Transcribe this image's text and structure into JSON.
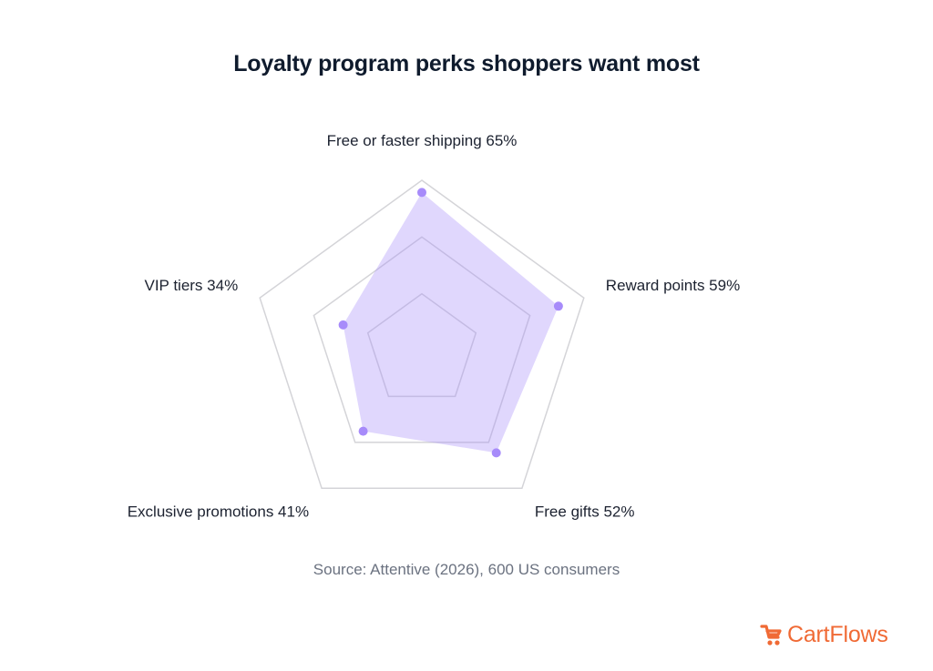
{
  "title": "Loyalty program perks shoppers want most",
  "source": "Source: Attentive (2026), 600 US consumers",
  "brand": {
    "name": "CartFlows",
    "logo_icon": "cartflows-cart-icon",
    "color": "#f06a35"
  },
  "colors": {
    "fill": "#a78bfa",
    "fill_opacity": 0.35,
    "point": "#a78bfa",
    "grid": "#d4d4d8"
  },
  "chart_data": {
    "type": "radar",
    "max": 70,
    "grid_levels": 3,
    "categories": [
      {
        "name": "Free or faster shipping",
        "label": "Free or faster shipping 65%",
        "value": 65
      },
      {
        "name": "Reward points",
        "label": "Reward points 59%",
        "value": 59
      },
      {
        "name": "Free gifts",
        "label": "Free gifts 52%",
        "value": 52
      },
      {
        "name": "Exclusive promotions",
        "label": "Exclusive promotions 41%",
        "value": 41
      },
      {
        "name": "VIP tiers",
        "label": "VIP tiers 34%",
        "value": 34
      }
    ],
    "unit": "%"
  }
}
